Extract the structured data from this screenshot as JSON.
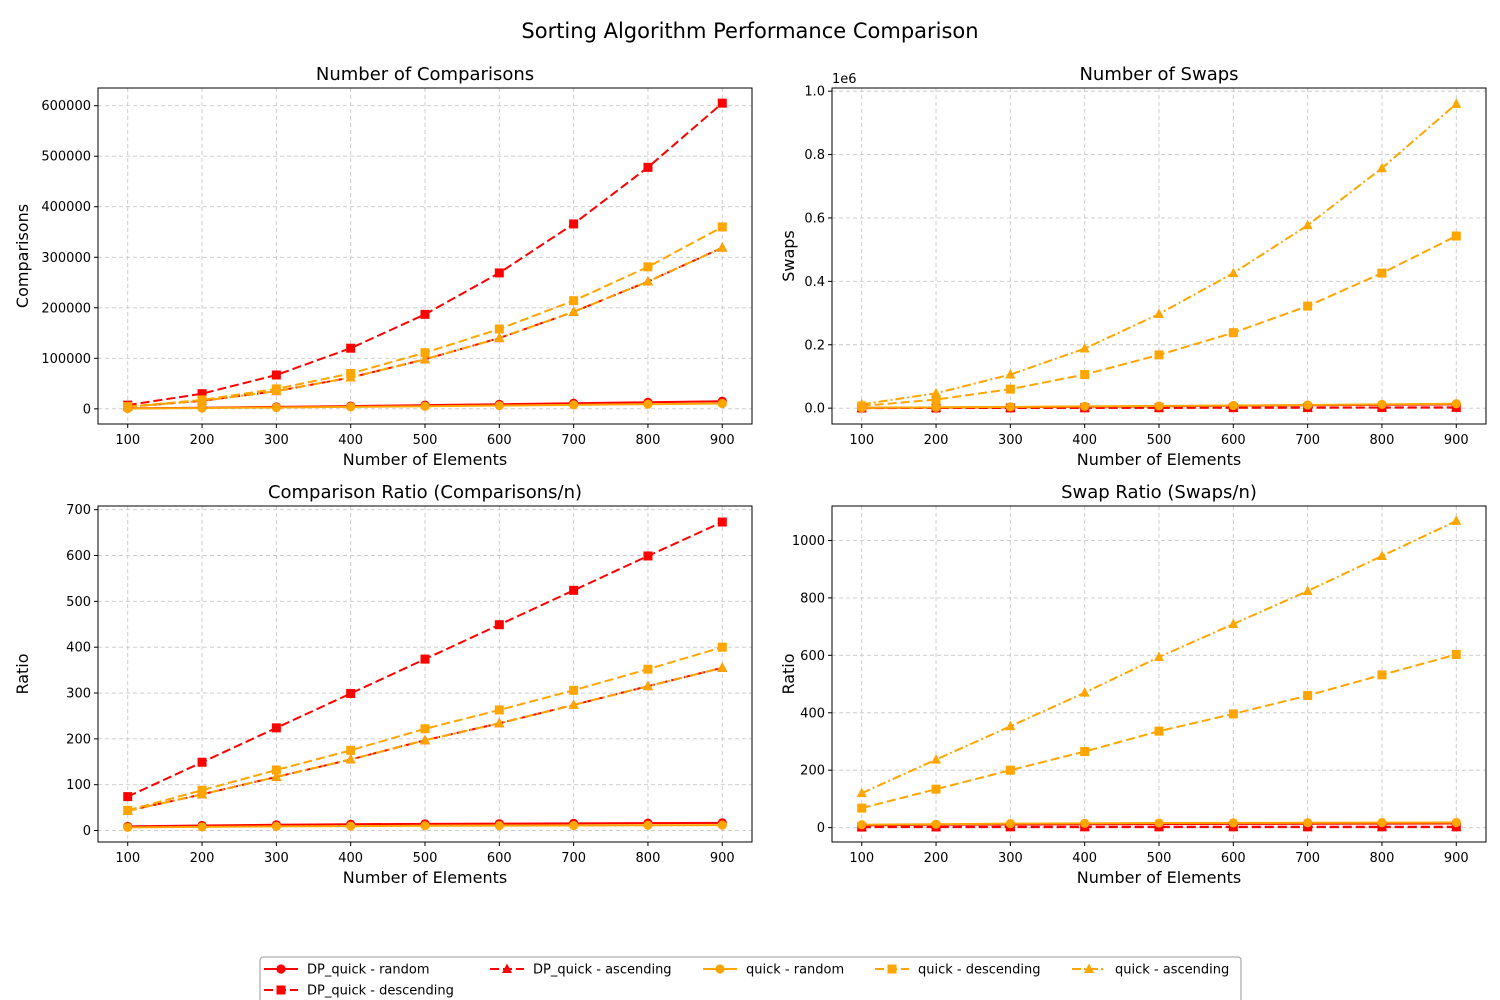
{
  "chart_data": {
    "title": "Sorting Algorithm Performance Comparison",
    "x": [
      100,
      200,
      300,
      400,
      500,
      600,
      700,
      800,
      900
    ],
    "series_styles": [
      {
        "name": "DP_quick - random",
        "color": "#ff0000",
        "marker": "circle",
        "dash": "solid"
      },
      {
        "name": "DP_quick - descending",
        "color": "#ff0000",
        "marker": "square",
        "dash": "dashed"
      },
      {
        "name": "DP_quick - ascending",
        "color": "#ff0000",
        "marker": "triangle",
        "dash": "dashed"
      },
      {
        "name": "quick - random",
        "color": "#ffa500",
        "marker": "circle",
        "dash": "solid"
      },
      {
        "name": "quick - descending",
        "color": "#ffa500",
        "marker": "square",
        "dash": "dashed"
      },
      {
        "name": "quick - ascending",
        "color": "#ffa500",
        "marker": "triangle",
        "dash": "dashdot"
      }
    ],
    "charts": [
      {
        "type": "line",
        "title": "Number of Comparisons",
        "xlabel": "Number of Elements",
        "ylabel": "Comparisons",
        "ylim": [
          -30000,
          635000
        ],
        "yticks": [
          0,
          100000,
          200000,
          300000,
          400000,
          500000,
          600000
        ],
        "ytick_labels": [
          "0",
          "100000",
          "200000",
          "300000",
          "400000",
          "500000",
          "600000"
        ],
        "exponent_label": "",
        "series": [
          {
            "name": "DP_quick - random",
            "values": [
              900,
              2200,
              3800,
              5500,
              7300,
              9000,
              11000,
              13000,
              15000
            ]
          },
          {
            "name": "DP_quick - descending",
            "values": [
              7400,
              30000,
              67000,
              120000,
              187000,
              269000,
              366000,
              478000,
              605000
            ]
          },
          {
            "name": "DP_quick - ascending",
            "values": [
              4300,
              15800,
              35000,
              62000,
              98000,
              140000,
              192000,
              252000,
              319000
            ]
          },
          {
            "name": "quick - random",
            "values": [
              700,
              1600,
              2700,
              3900,
              5200,
              6500,
              7800,
              9200,
              10600
            ]
          },
          {
            "name": "quick - descending",
            "values": [
              4400,
              17600,
              39500,
              70000,
              111000,
              158000,
              214000,
              281000,
              360000
            ]
          },
          {
            "name": "quick - ascending",
            "values": [
              4300,
              15800,
              35000,
              62000,
              98000,
              140000,
              192000,
              252000,
              319000
            ]
          }
        ]
      },
      {
        "type": "line",
        "title": "Number of Swaps",
        "xlabel": "Number of Elements",
        "ylabel": "Swaps",
        "ylim": [
          -0.05,
          1.01
        ],
        "yticks": [
          0,
          0.2,
          0.4,
          0.6,
          0.8,
          1.0
        ],
        "ytick_labels": [
          "0.0",
          "0.2",
          "0.4",
          "0.6",
          "0.8",
          "1.0"
        ],
        "exponent_label": "1e6",
        "series": [
          {
            "name": "DP_quick - random",
            "values": [
              0.0008,
              0.002,
              0.003,
              0.0045,
              0.006,
              0.0075,
              0.009,
              0.0105,
              0.012
            ]
          },
          {
            "name": "DP_quick - descending",
            "values": [
              0.0003,
              0.0005,
              0.0008,
              0.001,
              0.0013,
              0.0016,
              0.0019,
              0.0022,
              0.0025
            ]
          },
          {
            "name": "DP_quick - ascending",
            "values": [
              0.0002,
              0.0004,
              0.0006,
              0.0008,
              0.001,
              0.0012,
              0.0014,
              0.0016,
              0.0018
            ]
          },
          {
            "name": "quick - random",
            "values": [
              0.001,
              0.0025,
              0.004,
              0.0055,
              0.007,
              0.0085,
              0.01,
              0.012,
              0.014
            ]
          },
          {
            "name": "quick - descending",
            "values": [
              0.007,
              0.027,
              0.06,
              0.106,
              0.168,
              0.238,
              0.322,
              0.426,
              0.543
            ]
          },
          {
            "name": "quick - ascending",
            "values": [
              0.012,
              0.047,
              0.106,
              0.188,
              0.297,
              0.426,
              0.577,
              0.757,
              0.96
            ]
          }
        ]
      },
      {
        "type": "line",
        "title": "Comparison Ratio (Comparisons/n)",
        "xlabel": "Number of Elements",
        "ylabel": "Ratio",
        "ylim": [
          -25,
          708
        ],
        "yticks": [
          0,
          100,
          200,
          300,
          400,
          500,
          600,
          700
        ],
        "ytick_labels": [
          "0",
          "100",
          "200",
          "300",
          "400",
          "500",
          "600",
          "700"
        ],
        "exponent_label": "",
        "series": [
          {
            "name": "DP_quick - random",
            "values": [
              9,
              11,
              12.5,
              13.8,
              14.6,
              15,
              15.7,
              16.2,
              16.7
            ]
          },
          {
            "name": "DP_quick - descending",
            "values": [
              74,
              149,
              224,
              299,
              374,
              449,
              524,
              599,
              673
            ]
          },
          {
            "name": "DP_quick - ascending",
            "values": [
              43,
              79,
              117,
              155,
              197,
              234,
              274,
              315,
              355
            ]
          },
          {
            "name": "quick - random",
            "values": [
              7,
              8,
              9,
              9.7,
              10.4,
              10.8,
              11.1,
              11.5,
              11.8
            ]
          },
          {
            "name": "quick - descending",
            "values": [
              44,
              88,
              132,
              175,
              222,
              263,
              306,
              352,
              400
            ]
          },
          {
            "name": "quick - ascending",
            "values": [
              43,
              79,
              117,
              155,
              197,
              234,
              274,
              315,
              355
            ]
          }
        ]
      },
      {
        "type": "line",
        "title": "Swap Ratio (Swaps/n)",
        "xlabel": "Number of Elements",
        "ylabel": "Ratio",
        "ylim": [
          -50,
          1120
        ],
        "yticks": [
          0,
          200,
          400,
          600,
          800,
          1000
        ],
        "ytick_labels": [
          "0",
          "200",
          "400",
          "600",
          "800",
          "1000"
        ],
        "exponent_label": "",
        "series": [
          {
            "name": "DP_quick - random",
            "values": [
              8,
              10,
              11,
              12,
              12.5,
              13,
              13.5,
              14,
              14.5
            ]
          },
          {
            "name": "DP_quick - descending",
            "values": [
              2,
              2.5,
              3,
              3,
              3,
              3,
              3,
              3,
              3
            ]
          },
          {
            "name": "DP_quick - ascending",
            "values": [
              1.5,
              2,
              2,
              2,
              2,
              2,
              2,
              2,
              2
            ]
          },
          {
            "name": "quick - random",
            "values": [
              10,
              12,
              14,
              15,
              16,
              16.5,
              17,
              17.5,
              18
            ]
          },
          {
            "name": "quick - descending",
            "values": [
              68,
              134,
              200,
              265,
              336,
              396,
              460,
              532,
              603
            ]
          },
          {
            "name": "quick - ascending",
            "values": [
              120,
              237,
              353,
              470,
              594,
              709,
              824,
              946,
              1068
            ]
          }
        ]
      }
    ]
  }
}
